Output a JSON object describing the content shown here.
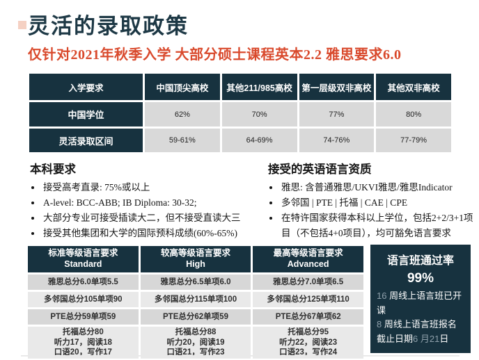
{
  "page": {
    "title": "灵活的录取政策",
    "subtitle": "仅针对2021年秋季入学 大部分硕士课程英本2.2 雅思要求6.0"
  },
  "colors": {
    "navy": "#17323f",
    "accent_red": "#d9492c",
    "cell_gray": "#d9d9d9",
    "cell_gray_dark": "#d7d7d7",
    "cell_gray_light": "#e9e9e9",
    "muted_number": "#8fa0ab"
  },
  "admission_table": {
    "headers": [
      "入学要求",
      "中国顶尖高校",
      "其他211/985高校",
      "第一层级双非高校",
      "其他双非高校"
    ],
    "rows": [
      {
        "label": "中国学位",
        "values": [
          "62%",
          "70%",
          "77%",
          "80%"
        ]
      },
      {
        "label": "灵活录取区间",
        "values": [
          "59-61%",
          "64-69%",
          "74-76%",
          "77-79%"
        ]
      }
    ]
  },
  "undergrad_section": {
    "heading": "本科要求",
    "bullets": [
      "接受高考直录: 75%或以上",
      "A-level: BCC-ABB; IB Diploma: 30-32;",
      "大部分专业可接受插读大二，但不接受直读大三",
      "接受其他集团和大学的国际预科成绩(60%-65%)"
    ]
  },
  "english_section": {
    "heading": "接受的英语语言资质",
    "bullets": [
      "雅思: 含普通雅思/UKVI雅思/雅思Indicator",
      "多邻国 | PTE | 托福 | CAE | CPE",
      "在特许国家获得本科以上学位，包括2+2/3+1项目（不包括4+0项目），均可豁免语言要求"
    ]
  },
  "language_table": {
    "columns": [
      {
        "title_cn": "标准等级语言要求",
        "title_en": "Standard",
        "ielts": "雅思总分6.0单项5.5",
        "duolingo": "多邻国总分105单项90",
        "pte": "PTE总分59单项59",
        "toefl": {
          "l1": "托福总分80",
          "l2": "听力17，阅读18",
          "l3": "口语20，写作17"
        }
      },
      {
        "title_cn": "较高等级语言要求",
        "title_en": "High",
        "ielts": "雅思总分6.5单项6.0",
        "duolingo": "多邻国总分115单项100",
        "pte": "PTE总分62单项59",
        "toefl": {
          "l1": "托福总分88",
          "l2": "听力20，阅读19",
          "l3": "口语21，写作23"
        }
      },
      {
        "title_cn": "最高等级语言要求",
        "title_en": "Advanced",
        "ielts": "雅思总分7.0单项6.5",
        "duolingo": "多邻国总分125单项110",
        "pte": "PTE总分67单项62",
        "toefl": {
          "l1": "托福总分95",
          "l2": "听力22，阅读23",
          "l3": "口语23，写作24"
        }
      }
    ]
  },
  "pass_box": {
    "title": "语言班通过率",
    "rate": "99%",
    "p1_num": "16",
    "p1_text": " 周线上语言班已开课",
    "p2_num": "8",
    "p2_mid": " 周线上语言班报名截止日期",
    "p2_num2": "6 月21",
    "p2_end": "日"
  }
}
